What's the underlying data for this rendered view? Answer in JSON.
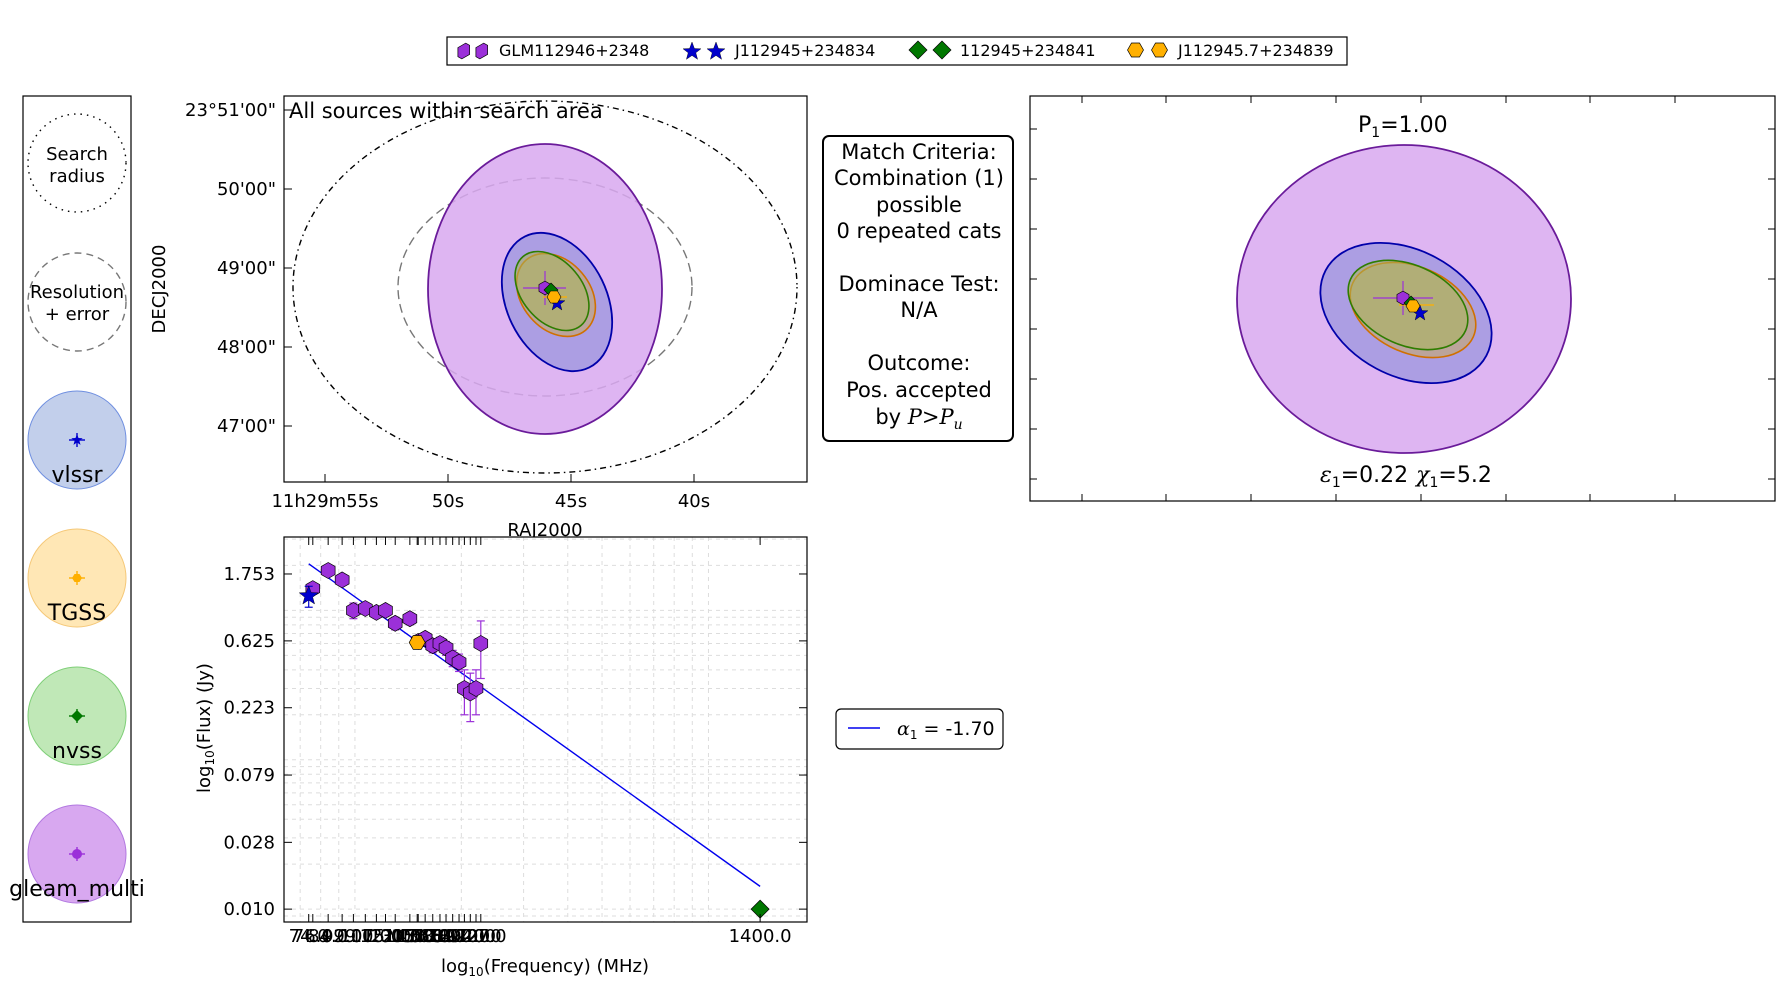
{
  "legend": {
    "entries": [
      {
        "label": "GLM112946+2348",
        "marker": "hexagon",
        "color": "#9b30d9"
      },
      {
        "label": "J112945+234834",
        "marker": "star",
        "color": "#0000cc"
      },
      {
        "label": "112945+234841",
        "marker": "diamond",
        "color": "#007700"
      },
      {
        "label": "J112945.7+234839",
        "marker": "hexagon",
        "color": "#ffb000"
      }
    ]
  },
  "key_panel": {
    "items": [
      {
        "label": "Search radius",
        "line1": "Search",
        "line2": "radius",
        "style": "dotted"
      },
      {
        "label": "Resolution + error",
        "line1": "Resolution",
        "line2": "+ error",
        "style": "dashed"
      },
      {
        "label": "vlssr",
        "fill": "#c2cfeb",
        "edge": "#6f8fe0",
        "marker": "#0000cc"
      },
      {
        "label": "TGSS",
        "fill": "#ffe7b5",
        "edge": "#f5c878",
        "marker": "#ffb000"
      },
      {
        "label": "nvss",
        "fill": "#c0e8b7",
        "edge": "#7fcf78",
        "marker": "#007700"
      },
      {
        "label": "gleam_multi",
        "fill": "#d8a8f0",
        "edge": "#b278e0",
        "marker": "#9b30d9"
      }
    ]
  },
  "sky_plot": {
    "annotation": "All sources within search area",
    "xlabel": "RAJ2000",
    "ylabel": "DECJ2000",
    "xticks": [
      "11h29m55s",
      "50s",
      "45s",
      "40s"
    ],
    "yticks": [
      "23°51'00\"",
      "50'00\"",
      "49'00\"",
      "48'00\"",
      "47'00\""
    ]
  },
  "criteria": {
    "lines": [
      "Match Criteria:",
      "Combination (1)",
      "possible",
      "0 repeated cats",
      "",
      "Dominace Test:",
      "N/A",
      "",
      "Outcome:",
      "Pos. accepted"
    ],
    "last_prefix": "by ",
    "last_math": "P>P",
    "last_sub": "u"
  },
  "zoom_plot": {
    "p_label": "P",
    "p_sub": "1",
    "p_value": "=1.00",
    "eps_sym": "ε",
    "eps_sub": "1",
    "eps_value": "=0.22",
    "chi_sym": "χ",
    "chi_sub": "1",
    "chi_value": "=5.2"
  },
  "sed_legend": {
    "alpha_sym": "α",
    "alpha_sub": "1",
    "alpha_value": " = -1.70",
    "line_color": "#0000ee"
  },
  "chart_data": {
    "type": "scatter",
    "xlabel_prefix": "log",
    "xlabel_sub": "10",
    "xlabel_rest": "(Frequency) (MHz)",
    "ylabel_prefix": "log",
    "ylabel_sub": "10",
    "ylabel_rest": "(Flux) (Jy)",
    "x_scale": "log",
    "y_scale": "log",
    "xlim": [
      63,
      1900
    ],
    "ylim": [
      0.0082,
      3.1
    ],
    "xticks": [
      {
        "value": 74,
        "label": "74.0"
      },
      {
        "value": 76,
        "label": "76.0"
      },
      {
        "value": 84,
        "label": "84.0"
      },
      {
        "value": 92,
        "label": "92.0"
      },
      {
        "value": 99,
        "label": "99.0"
      },
      {
        "value": 107,
        "label": "107.0"
      },
      {
        "value": 115,
        "label": "115.0"
      },
      {
        "value": 122,
        "label": "122.0"
      },
      {
        "value": 130,
        "label": "130.0"
      },
      {
        "value": 143,
        "label": "143.0"
      },
      {
        "value": 150,
        "label": "150.0"
      },
      {
        "value": 151,
        "label": "151.0"
      },
      {
        "value": 158,
        "label": "158.0"
      },
      {
        "value": 166,
        "label": "166.0"
      },
      {
        "value": 174,
        "label": "174.0"
      },
      {
        "value": 181,
        "label": "181.0"
      },
      {
        "value": 189,
        "label": "189.0"
      },
      {
        "value": 197,
        "label": "197.0"
      },
      {
        "value": 204,
        "label": "204.0"
      },
      {
        "value": 212,
        "label": "212.0"
      },
      {
        "value": 220,
        "label": "220.0"
      },
      {
        "value": 227,
        "label": "227.0"
      },
      {
        "value": 1400,
        "label": "1400.0"
      }
    ],
    "yticks": [
      {
        "value": 0.01,
        "label": "0.010"
      },
      {
        "value": 0.028,
        "label": "0.028"
      },
      {
        "value": 0.079,
        "label": "0.079"
      },
      {
        "value": 0.223,
        "label": "0.223"
      },
      {
        "value": 0.625,
        "label": "0.625"
      },
      {
        "value": 1.753,
        "label": "1.753"
      }
    ],
    "grid": true,
    "series": [
      {
        "name": "GLM112946+2348",
        "marker": "hexagon",
        "color": "#9b30d9",
        "x": [
          76,
          84,
          92,
          99,
          107,
          115,
          122,
          130,
          143,
          151,
          158,
          166,
          174,
          181,
          189,
          197,
          204,
          212,
          220,
          227
        ],
        "y": [
          1.4,
          1.85,
          1.6,
          1.0,
          1.03,
          0.97,
          1.0,
          0.82,
          0.88,
          0.62,
          0.65,
          0.58,
          0.6,
          0.56,
          0.48,
          0.45,
          0.3,
          0.28,
          0.3,
          0.6
        ],
        "yerr": [
          0.1,
          0.1,
          0.1,
          0.12,
          0.08,
          0.08,
          0.08,
          0.08,
          0.08,
          0.06,
          0.06,
          0.06,
          0.06,
          0.06,
          0.06,
          0.06,
          0.1,
          0.1,
          0.1,
          0.25
        ]
      },
      {
        "name": "J112945+234834",
        "marker": "star",
        "color": "#0000cc",
        "x": [
          74
        ],
        "y": [
          1.25
        ],
        "yerr": [
          0.2
        ]
      },
      {
        "name": "112945+234841",
        "marker": "diamond",
        "color": "#007700",
        "x": [
          1400
        ],
        "y": [
          0.01
        ],
        "yerr": [
          0.0
        ]
      },
      {
        "name": "J112945.7+234839",
        "marker": "hexagon",
        "color": "#ffb000",
        "x": [
          150
        ],
        "y": [
          0.61
        ],
        "yerr": [
          0.05
        ]
      }
    ],
    "fit_line": {
      "x": [
        74,
        1400
      ],
      "y": [
        2.05,
        0.0142
      ]
    }
  }
}
